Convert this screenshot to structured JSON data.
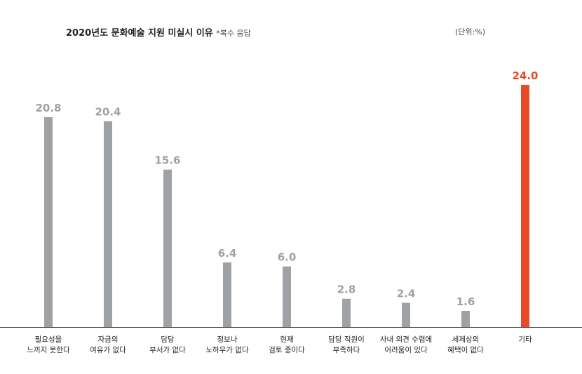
{
  "title": "2020년도 문화예술 지원 미실시 이유",
  "subtitle": "*복수 응답",
  "unit_label": "(단위:%)",
  "colors": {
    "bar": "#9ea2a5",
    "highlight": "#e84a27",
    "value_label": "#9ea2a5",
    "axis": "#333333"
  },
  "chart_data": {
    "type": "bar",
    "title": "2020년도 문화예술 지원 미실시 이유",
    "subtitle": "*복수 응답",
    "unit": "%",
    "categories": [
      [
        "필요성을",
        "느끼지 못한다"
      ],
      [
        "자금의",
        "여유가 없다"
      ],
      [
        "담당",
        "부서가 없다"
      ],
      [
        "정보나",
        "노하우가 없다"
      ],
      [
        "현재",
        "검토 중이다"
      ],
      [
        "담당 직원이",
        "부족하다"
      ],
      [
        "사내 의견 수렴에",
        "어려움이 있다"
      ],
      [
        "세제상의",
        "혜택이 없다"
      ],
      [
        "기타"
      ]
    ],
    "values": [
      20.8,
      20.4,
      15.6,
      6.4,
      6.0,
      2.8,
      2.4,
      1.6,
      24.0
    ],
    "value_labels": [
      "20.8",
      "20.4",
      "15.6",
      "6.4",
      "6.0",
      "2.8",
      "2.4",
      "1.6",
      "24.0"
    ],
    "highlight_index": 8,
    "ylim": [
      0,
      26.5
    ],
    "grid": false,
    "legend": "none"
  }
}
